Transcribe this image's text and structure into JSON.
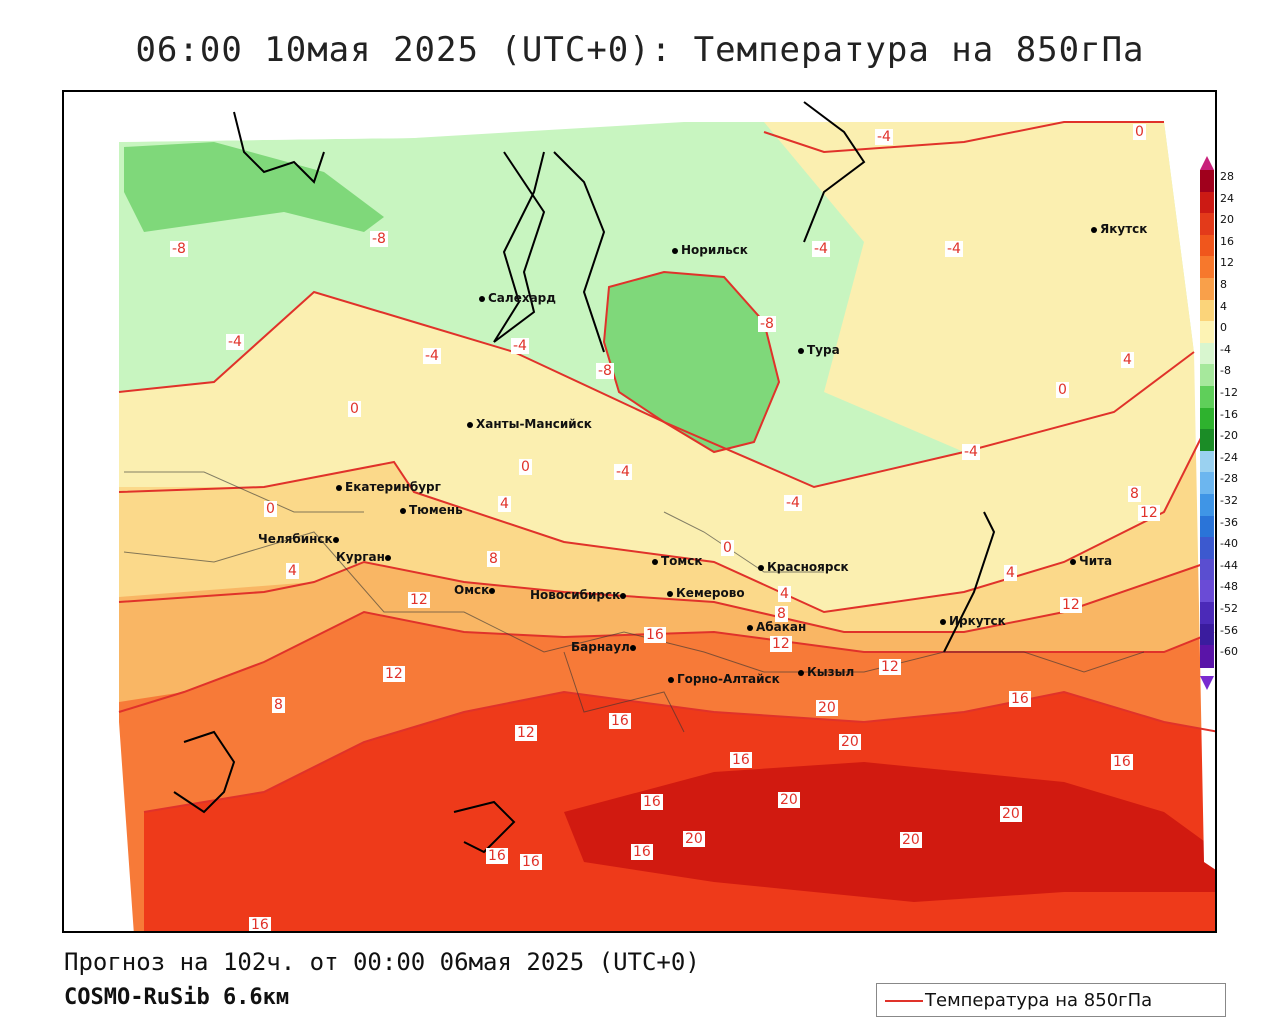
{
  "title": "06:00 10мая 2025 (UTC+0): Температура на 850гПа",
  "forecast_line": "Прогноз на 102ч. от 00:00 06мая 2025 (UTC+0)",
  "model_line": "COSMO-RuSib 6.6км",
  "legend": {
    "line_label": "Температура на 850гПа",
    "line_color": "#e0322a"
  },
  "colors": {
    "contour": "#e0322a",
    "band_m8": "#7fd87a",
    "band_m4": "#c8f5c0",
    "band_0": "#fbefb0",
    "band_4": "#fbd98a",
    "band_8": "#f9b664",
    "band_12": "#f77a38",
    "band_16": "#ee3a1a",
    "band_20": "#d11a10"
  },
  "cities": [
    {
      "name": "Якутск"
    },
    {
      "name": "Норильск"
    },
    {
      "name": "Салехард"
    },
    {
      "name": "Тура"
    },
    {
      "name": "Ханты-Мансийск"
    },
    {
      "name": "Екатеринбург"
    },
    {
      "name": "Тюмень"
    },
    {
      "name": "Челябинск"
    },
    {
      "name": "Курган"
    },
    {
      "name": "Томск"
    },
    {
      "name": "Красноярск"
    },
    {
      "name": "Омск"
    },
    {
      "name": "Новосибирск"
    },
    {
      "name": "Кемерово"
    },
    {
      "name": "Абакан"
    },
    {
      "name": "Иркутск"
    },
    {
      "name": "Чита"
    },
    {
      "name": "Барнаул"
    },
    {
      "name": "Горно-Алтайск"
    },
    {
      "name": "Кызыл"
    }
  ],
  "contour_labels": [
    "-4",
    "0",
    "-8",
    "-8",
    "-4",
    "-4",
    "-4",
    "-4",
    "-8",
    "-8",
    "-4",
    "0",
    "-4",
    "-4",
    "0",
    "4",
    "0",
    "-4",
    "8",
    "12",
    "0",
    "4",
    "0",
    "4",
    "8",
    "4",
    "12",
    "8",
    "12",
    "12",
    "16",
    "12",
    "8",
    "12",
    "16",
    "12",
    "16",
    "20",
    "20",
    "16",
    "20",
    "20",
    "16",
    "16",
    "16",
    "20",
    "20",
    "16",
    "16",
    "16",
    "4"
  ],
  "scale": {
    "labels": [
      "28",
      "24",
      "20",
      "16",
      "12",
      "8",
      "4",
      "0",
      "-4",
      "-8",
      "-12",
      "-16",
      "-20",
      "-24",
      "-28",
      "-32",
      "-36",
      "-40",
      "-44",
      "-48",
      "-52",
      "-56",
      "-60"
    ],
    "colors": [
      "#a0001c",
      "#cc1a14",
      "#e33a1a",
      "#f0561c",
      "#f7782c",
      "#f9a04a",
      "#fbd47a",
      "#fdf3b4",
      "#d8f6cf",
      "#a6e89c",
      "#5fcf5a",
      "#2eb22e",
      "#1b8c26",
      "#9ad1f0",
      "#6cb6ef",
      "#3f95e6",
      "#2a74d8",
      "#3c59cf",
      "#5a4ed0",
      "#6a4bd6",
      "#4b2ab8",
      "#3a1c9e",
      "#5a14a8"
    ]
  }
}
